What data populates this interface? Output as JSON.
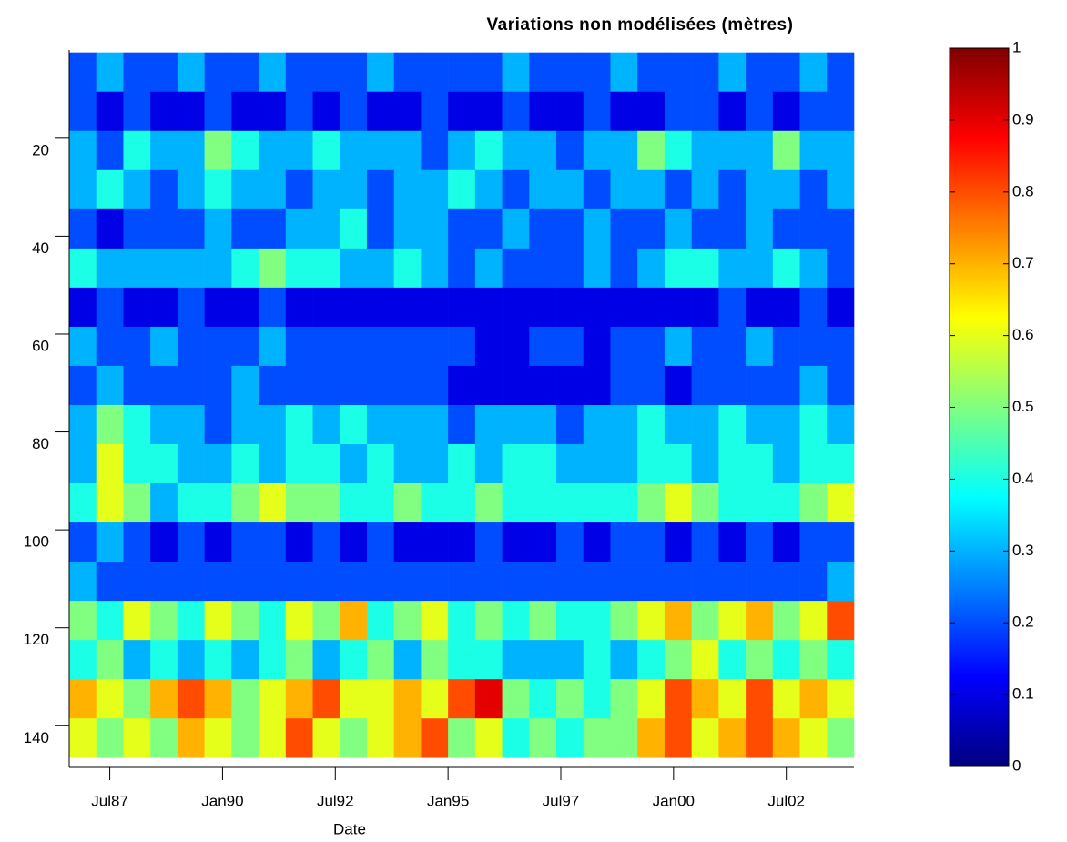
{
  "chart_data": {
    "type": "heatmap",
    "title": "Variations non modélisées (mètres)",
    "x_label": "Date",
    "colormap": "jet",
    "x": [
      1986.9,
      1987.5,
      1988.1,
      1988.7,
      1989.3,
      1989.9,
      1990.5,
      1991.1,
      1991.7,
      1992.3,
      1992.9,
      1993.5,
      1994.1,
      1994.7,
      1995.3,
      1995.9,
      1996.5,
      1997.1,
      1997.7,
      1998.3,
      1998.9,
      1999.5,
      2000.1,
      2000.7,
      2001.3,
      2001.9,
      2002.5,
      2003.1,
      2003.7
    ],
    "y": [
      6.5,
      14.5,
      22.5,
      30.5,
      38.5,
      46.5,
      54.5,
      62.5,
      70.5,
      78.5,
      86.5,
      94.5,
      102.5,
      110.5,
      118.5,
      126.5,
      134.5,
      142.5
    ],
    "z": [
      [
        0.2,
        0.3,
        0.2,
        0.2,
        0.3,
        0.2,
        0.2,
        0.3,
        0.2,
        0.2,
        0.2,
        0.3,
        0.2,
        0.2,
        0.2,
        0.2,
        0.3,
        0.2,
        0.2,
        0.2,
        0.3,
        0.2,
        0.2,
        0.2,
        0.3,
        0.2,
        0.2,
        0.3,
        0.2
      ],
      [
        0.2,
        0.1,
        0.2,
        0.1,
        0.1,
        0.2,
        0.1,
        0.1,
        0.2,
        0.1,
        0.2,
        0.1,
        0.1,
        0.2,
        0.1,
        0.1,
        0.2,
        0.1,
        0.1,
        0.2,
        0.1,
        0.1,
        0.2,
        0.2,
        0.1,
        0.2,
        0.1,
        0.2,
        0.2
      ],
      [
        0.3,
        0.2,
        0.4,
        0.3,
        0.3,
        0.5,
        0.4,
        0.3,
        0.3,
        0.4,
        0.3,
        0.3,
        0.3,
        0.2,
        0.3,
        0.4,
        0.3,
        0.3,
        0.2,
        0.3,
        0.3,
        0.5,
        0.4,
        0.3,
        0.3,
        0.3,
        0.5,
        0.3,
        0.3
      ],
      [
        0.3,
        0.4,
        0.3,
        0.2,
        0.3,
        0.4,
        0.3,
        0.3,
        0.2,
        0.3,
        0.3,
        0.2,
        0.3,
        0.3,
        0.4,
        0.3,
        0.2,
        0.3,
        0.3,
        0.2,
        0.3,
        0.3,
        0.2,
        0.3,
        0.2,
        0.3,
        0.3,
        0.2,
        0.3
      ],
      [
        0.2,
        0.1,
        0.2,
        0.2,
        0.2,
        0.3,
        0.2,
        0.2,
        0.3,
        0.3,
        0.4,
        0.2,
        0.3,
        0.3,
        0.2,
        0.2,
        0.3,
        0.2,
        0.2,
        0.3,
        0.2,
        0.2,
        0.3,
        0.2,
        0.2,
        0.3,
        0.2,
        0.2,
        0.2
      ],
      [
        0.4,
        0.3,
        0.3,
        0.3,
        0.3,
        0.3,
        0.4,
        0.5,
        0.4,
        0.4,
        0.3,
        0.3,
        0.4,
        0.3,
        0.2,
        0.3,
        0.2,
        0.2,
        0.2,
        0.3,
        0.2,
        0.3,
        0.4,
        0.4,
        0.3,
        0.3,
        0.4,
        0.3,
        0.2
      ],
      [
        0.1,
        0.2,
        0.1,
        0.1,
        0.2,
        0.1,
        0.1,
        0.2,
        0.1,
        0.1,
        0.1,
        0.1,
        0.1,
        0.1,
        0.1,
        0.1,
        0.1,
        0.1,
        0.1,
        0.1,
        0.1,
        0.1,
        0.1,
        0.1,
        0.2,
        0.1,
        0.1,
        0.2,
        0.1
      ],
      [
        0.3,
        0.2,
        0.2,
        0.3,
        0.2,
        0.2,
        0.2,
        0.3,
        0.2,
        0.2,
        0.2,
        0.2,
        0.2,
        0.2,
        0.2,
        0.1,
        0.1,
        0.2,
        0.2,
        0.1,
        0.2,
        0.2,
        0.3,
        0.2,
        0.2,
        0.3,
        0.2,
        0.2,
        0.2
      ],
      [
        0.2,
        0.3,
        0.2,
        0.2,
        0.2,
        0.2,
        0.3,
        0.2,
        0.2,
        0.2,
        0.2,
        0.2,
        0.2,
        0.2,
        0.1,
        0.1,
        0.1,
        0.1,
        0.1,
        0.1,
        0.2,
        0.2,
        0.1,
        0.2,
        0.2,
        0.2,
        0.2,
        0.3,
        0.2
      ],
      [
        0.3,
        0.5,
        0.4,
        0.3,
        0.3,
        0.2,
        0.3,
        0.3,
        0.4,
        0.3,
        0.4,
        0.3,
        0.3,
        0.3,
        0.2,
        0.3,
        0.3,
        0.3,
        0.2,
        0.3,
        0.3,
        0.4,
        0.3,
        0.3,
        0.4,
        0.3,
        0.3,
        0.4,
        0.3
      ],
      [
        0.3,
        0.6,
        0.4,
        0.4,
        0.3,
        0.3,
        0.4,
        0.3,
        0.4,
        0.4,
        0.3,
        0.4,
        0.3,
        0.3,
        0.4,
        0.3,
        0.4,
        0.4,
        0.3,
        0.3,
        0.3,
        0.4,
        0.4,
        0.3,
        0.4,
        0.4,
        0.3,
        0.4,
        0.4
      ],
      [
        0.4,
        0.6,
        0.5,
        0.3,
        0.4,
        0.4,
        0.5,
        0.6,
        0.5,
        0.5,
        0.4,
        0.4,
        0.5,
        0.4,
        0.4,
        0.5,
        0.4,
        0.4,
        0.4,
        0.4,
        0.4,
        0.5,
        0.6,
        0.5,
        0.4,
        0.4,
        0.4,
        0.5,
        0.6
      ],
      [
        0.2,
        0.3,
        0.2,
        0.1,
        0.2,
        0.1,
        0.2,
        0.2,
        0.1,
        0.2,
        0.1,
        0.2,
        0.1,
        0.1,
        0.1,
        0.2,
        0.1,
        0.1,
        0.2,
        0.1,
        0.2,
        0.2,
        0.1,
        0.2,
        0.1,
        0.2,
        0.1,
        0.2,
        0.2
      ],
      [
        0.3,
        0.2,
        0.2,
        0.2,
        0.2,
        0.2,
        0.2,
        0.2,
        0.2,
        0.2,
        0.2,
        0.2,
        0.2,
        0.2,
        0.2,
        0.2,
        0.2,
        0.2,
        0.2,
        0.2,
        0.2,
        0.2,
        0.2,
        0.2,
        0.2,
        0.2,
        0.2,
        0.2,
        0.3
      ],
      [
        0.5,
        0.4,
        0.6,
        0.5,
        0.4,
        0.6,
        0.5,
        0.4,
        0.6,
        0.5,
        0.7,
        0.4,
        0.5,
        0.6,
        0.4,
        0.5,
        0.4,
        0.5,
        0.4,
        0.4,
        0.5,
        0.6,
        0.7,
        0.5,
        0.6,
        0.7,
        0.5,
        0.6,
        0.8
      ],
      [
        0.4,
        0.5,
        0.3,
        0.4,
        0.3,
        0.4,
        0.3,
        0.4,
        0.5,
        0.3,
        0.4,
        0.5,
        0.3,
        0.5,
        0.4,
        0.4,
        0.3,
        0.3,
        0.3,
        0.4,
        0.3,
        0.4,
        0.5,
        0.6,
        0.4,
        0.5,
        0.4,
        0.5,
        0.4
      ],
      [
        0.7,
        0.6,
        0.5,
        0.7,
        0.8,
        0.7,
        0.5,
        0.6,
        0.7,
        0.8,
        0.6,
        0.6,
        0.7,
        0.6,
        0.8,
        0.9,
        0.5,
        0.4,
        0.5,
        0.4,
        0.5,
        0.6,
        0.8,
        0.7,
        0.6,
        0.8,
        0.6,
        0.7,
        0.6
      ],
      [
        0.6,
        0.5,
        0.6,
        0.5,
        0.7,
        0.6,
        0.5,
        0.6,
        0.8,
        0.6,
        0.5,
        0.6,
        0.7,
        0.8,
        0.5,
        0.6,
        0.4,
        0.5,
        0.4,
        0.5,
        0.5,
        0.7,
        0.8,
        0.6,
        0.7,
        0.8,
        0.7,
        0.6,
        0.5
      ]
    ],
    "xlim": [
      1986.6,
      2004.0
    ],
    "xticks": [
      {
        "value": 1987.5,
        "label": "Jul87"
      },
      {
        "value": 1990.0,
        "label": "Jan90"
      },
      {
        "value": 1992.5,
        "label": "Jul92"
      },
      {
        "value": 1995.0,
        "label": "Jan95"
      },
      {
        "value": 1997.5,
        "label": "Jul97"
      },
      {
        "value": 2000.0,
        "label": "Jan00"
      },
      {
        "value": 2002.5,
        "label": "Jul02"
      }
    ],
    "ylim": [
      2,
      148.5
    ],
    "yticks": [
      20,
      40,
      60,
      80,
      100,
      120,
      140
    ],
    "y_reversed": true,
    "clim": [
      0,
      1
    ],
    "cticks": [
      0,
      0.1,
      0.2,
      0.3,
      0.4,
      0.5,
      0.6,
      0.7,
      0.8,
      0.9,
      1
    ]
  }
}
